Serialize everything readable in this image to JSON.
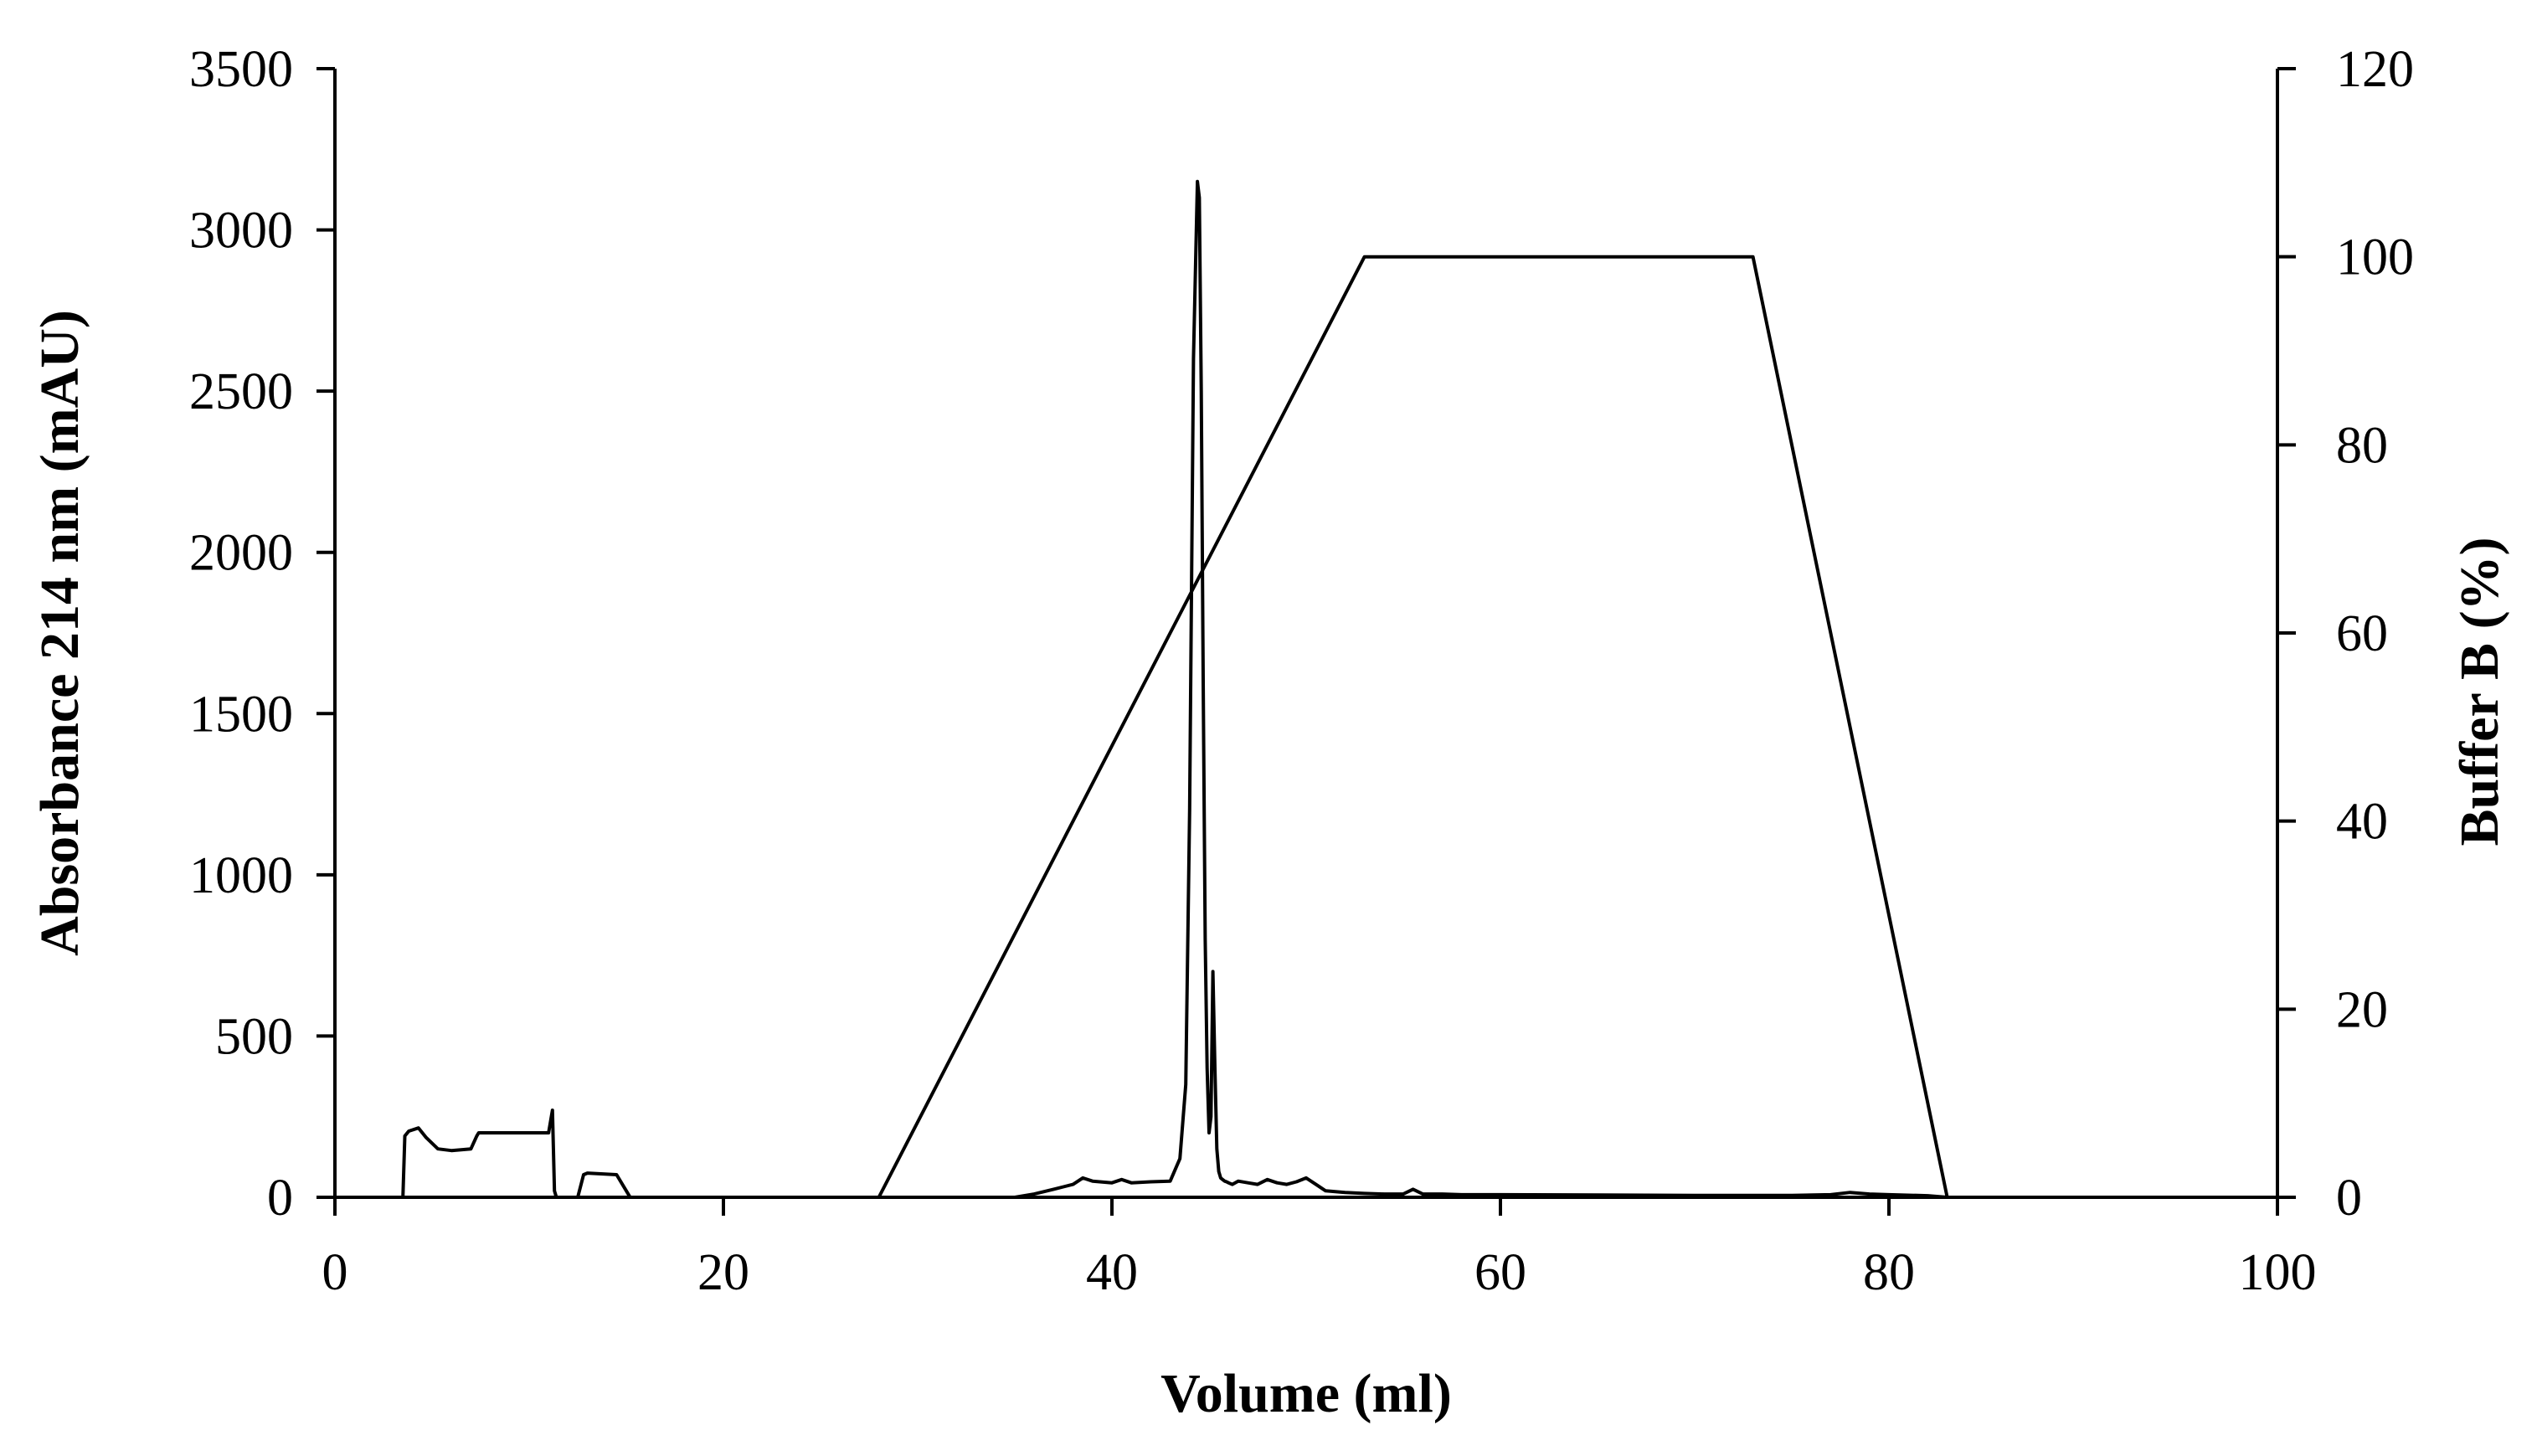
{
  "chart_data": {
    "type": "line",
    "title": "",
    "xlabel": "Volume (ml)",
    "ylabel": "Absorbance 214 nm (mAU)",
    "y2label": "Buffer B (%)",
    "xlim": [
      0,
      100
    ],
    "ylim": [
      0,
      3500
    ],
    "y2lim": [
      0,
      120
    ],
    "x_ticks": [
      "0",
      "20",
      "40",
      "60",
      "80",
      "100"
    ],
    "y_ticks": [
      "0",
      "500",
      "1000",
      "1500",
      "2000",
      "2500",
      "3000",
      "3500"
    ],
    "y2_ticks": [
      "0",
      "20",
      "40",
      "60",
      "80",
      "100",
      "120"
    ],
    "grid": false,
    "legend": "none",
    "series": [
      {
        "axis": "left",
        "color": "#000000",
        "x": [
          0,
          3.5,
          3.6,
          3.8,
          4.3,
          4.7,
          5.3,
          6.0,
          7.0,
          7.3,
          7.4,
          8.5,
          11.0,
          11.2,
          11.3,
          11.4,
          11.6,
          12.5,
          12.8,
          13.0,
          14.5,
          15.0,
          15.2,
          16.0,
          20.0,
          25.0,
          30.0,
          35.0,
          36.0,
          37.0,
          38.0,
          38.5,
          39.0,
          40.0,
          40.5,
          41.0,
          42.0,
          43.0,
          43.5,
          43.8,
          44.0,
          44.2,
          44.4,
          44.5,
          44.6,
          44.7,
          44.8,
          44.9,
          45.0,
          45.1,
          45.2,
          45.3,
          45.4,
          45.5,
          45.6,
          45.7,
          45.8,
          45.9,
          46.0,
          46.2,
          46.5,
          47.0,
          47.5,
          48.0,
          48.5,
          49.0,
          49.5,
          50.0,
          50.5,
          51.0,
          52.0,
          53.0,
          54.0,
          55.0,
          55.5,
          56.0,
          57.0,
          58.0,
          60.0,
          65.0,
          70.0,
          75.0,
          77.0,
          78.0,
          79.0,
          80.0,
          82.0,
          83.0,
          90.0,
          100.0
        ],
        "values": [
          0,
          0,
          190,
          205,
          215,
          185,
          150,
          145,
          150,
          190,
          200,
          200,
          200,
          270,
          20,
          0,
          0,
          0,
          70,
          75,
          70,
          20,
          0,
          0,
          0,
          0,
          0,
          0,
          10,
          25,
          40,
          60,
          50,
          45,
          55,
          45,
          48,
          50,
          120,
          350,
          1200,
          2600,
          3150,
          3100,
          2500,
          1600,
          800,
          400,
          200,
          250,
          700,
          400,
          150,
          80,
          60,
          55,
          50,
          48,
          45,
          40,
          50,
          45,
          40,
          55,
          45,
          40,
          48,
          60,
          40,
          20,
          15,
          12,
          10,
          10,
          25,
          10,
          10,
          8,
          8,
          7,
          6,
          6,
          8,
          15,
          10,
          8,
          5,
          0,
          0,
          0
        ]
      },
      {
        "axis": "right",
        "color": "#000000",
        "x": [
          0,
          28,
          53,
          73,
          83,
          100
        ],
        "values": [
          0,
          0,
          100,
          100,
          0,
          0
        ]
      }
    ]
  }
}
